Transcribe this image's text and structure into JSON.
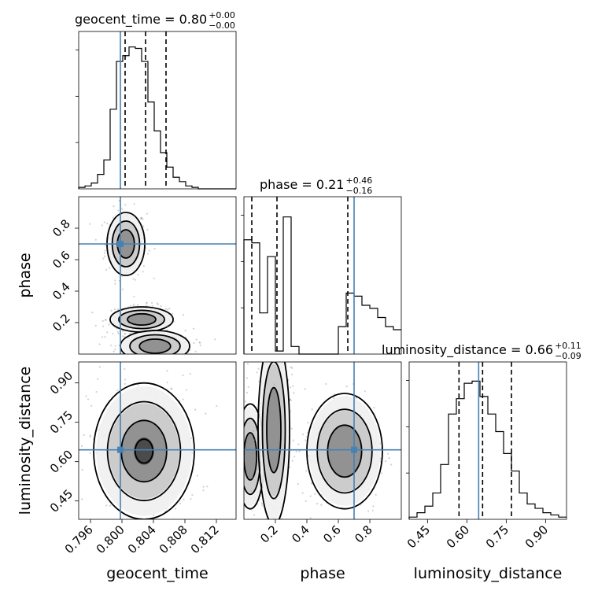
{
  "chart_data": {
    "type": "corner",
    "parameters": [
      {
        "name": "geocent_time",
        "axis_label": "geocent_time",
        "title": "geocent_time = 0.80",
        "title_plus": "+0.00",
        "title_minus": "−0.00",
        "range": [
          0.7945,
          0.8145
        ],
        "ticks": [
          0.796,
          0.8,
          0.804,
          0.808,
          0.812
        ],
        "tick_labels": [
          "0.796",
          "0.800",
          "0.804",
          "0.808",
          "0.812"
        ],
        "truth": 0.7998,
        "quantiles": [
          0.8004,
          0.803,
          0.8056
        ],
        "hist_edges_start": 0.7945,
        "hist_bin_width": 0.0008,
        "hist_counts": [
          1,
          2,
          4,
          10,
          20,
          55,
          88,
          92,
          98,
          97,
          88,
          60,
          40,
          25,
          15,
          8,
          5,
          2,
          1,
          0,
          0,
          0,
          0,
          0,
          0
        ]
      },
      {
        "name": "phase",
        "axis_label": "phase",
        "title": "phase = 0.21",
        "title_plus": "+0.46",
        "title_minus": "−0.16",
        "range": [
          0.0,
          1.0
        ],
        "ticks": [
          0.2,
          0.4,
          0.6,
          0.8
        ],
        "tick_labels": [
          "0.2",
          "0.4",
          "0.6",
          "0.8"
        ],
        "truth": 0.7,
        "quantiles": [
          0.05,
          0.21,
          0.66
        ],
        "hist_edges_start": 0.0,
        "hist_bin_width": 0.05,
        "hist_counts": [
          75,
          73,
          27,
          64,
          2,
          90,
          5,
          0,
          0,
          0,
          0,
          0,
          0,
          0,
          0,
          0,
          0,
          0,
          0,
          0
        ]
      },
      {
        "name": "luminosity_distance",
        "axis_label": "luminosity_distance",
        "title": "luminosity_distance = 0.66",
        "title_plus": "+0.11",
        "title_minus": "−0.09",
        "range": [
          0.38,
          0.98
        ],
        "ticks": [
          0.45,
          0.6,
          0.75,
          0.9
        ],
        "tick_labels": [
          "0.45",
          "0.60",
          "0.75",
          "0.90"
        ],
        "truth": 0.645,
        "quantiles": [
          0.57,
          0.66,
          0.77
        ],
        "hist_edges_start": 0.38,
        "hist_bin_width": 0.03,
        "hist_counts": [
          1,
          3,
          6,
          12,
          25,
          48,
          55,
          62,
          63,
          56,
          48,
          40,
          30,
          22,
          12,
          7,
          5,
          3,
          2,
          1
        ]
      }
    ],
    "phase_hist_tail": [
      0,
      0,
      0,
      0,
      0,
      0,
      0,
      0,
      0,
      0,
      0,
      0,
      18,
      40,
      38,
      32,
      30,
      24,
      18,
      16
    ],
    "contours": {
      "phase_vs_geocent_time": [
        {
          "blob": [
            0.8005,
            0.7,
            0.0012,
            0.1,
            3
          ]
        },
        {
          "blob": [
            0.8025,
            0.22,
            0.002,
            0.04,
            3
          ]
        },
        {
          "blob": [
            0.8042,
            0.05,
            0.0022,
            0.05,
            3
          ]
        }
      ],
      "luminosity_distance_vs_geocent_time": [
        {
          "blob": [
            0.8028,
            0.64,
            0.0032,
            0.13,
            4
          ]
        }
      ],
      "luminosity_distance_vs_phase": [
        {
          "blob": [
            0.04,
            0.62,
            0.045,
            0.1,
            3
          ]
        },
        {
          "blob": [
            0.19,
            0.72,
            0.05,
            0.18,
            3
          ]
        },
        {
          "blob": [
            0.64,
            0.64,
            0.12,
            0.11,
            3
          ]
        }
      ]
    }
  }
}
